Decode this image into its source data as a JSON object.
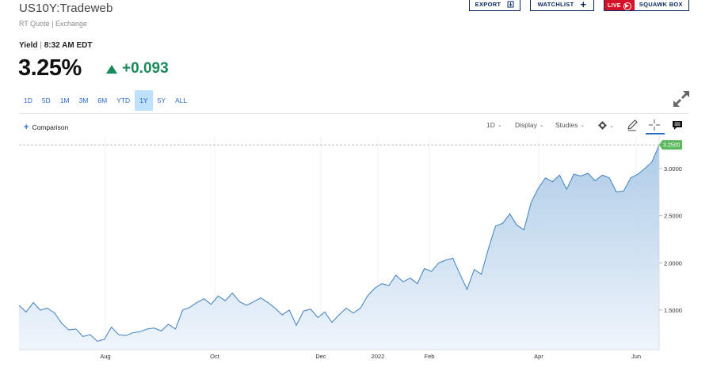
{
  "header": {
    "symbol": "US10Y:Tradeweb",
    "subtitle": "RT Quote | Exchange",
    "buttons": {
      "export": "EXPORT",
      "watchlist": "WATCHLIST",
      "live": "LIVE",
      "squawk": "SQUAWK BOX"
    }
  },
  "quote": {
    "label": "Yield",
    "separator": "|",
    "time": "8:32 AM EDT",
    "price": "3.25%",
    "change": "+0.093",
    "change_color": "#1a8a5a"
  },
  "ranges": [
    {
      "label": "1D",
      "active": false
    },
    {
      "label": "5D",
      "active": false
    },
    {
      "label": "1M",
      "active": false
    },
    {
      "label": "3M",
      "active": false
    },
    {
      "label": "6M",
      "active": false
    },
    {
      "label": "YTD",
      "active": false
    },
    {
      "label": "1Y",
      "active": true
    },
    {
      "label": "5Y",
      "active": false
    },
    {
      "label": "ALL",
      "active": false
    }
  ],
  "toolbar": {
    "comparison": "Comparison",
    "interval": "1D",
    "display": "Display",
    "studies": "Studies",
    "icons": [
      "gear-icon",
      "pencil-icon",
      "crosshair-icon",
      "comment-icon",
      "expand-icon"
    ]
  },
  "chart_data": {
    "type": "area",
    "x_tick_labels": [
      "Aug",
      "Oct",
      "Dec",
      "2022",
      "Feb",
      "Apr",
      "Jun"
    ],
    "y_tick_labels": [
      "3.0000",
      "2.5000",
      "2.0000",
      "1.5000"
    ],
    "y_ticks": [
      3.0,
      2.5,
      2.0,
      1.5
    ],
    "ylim": [
      1.1,
      3.45
    ],
    "last_value_label": "3.2500",
    "last_value": 3.25,
    "line_color": "#4a88c6",
    "badge_color": "#5cb85c",
    "grid": true,
    "series": [
      {
        "values": [
          1.55,
          1.48,
          1.58,
          1.5,
          1.52,
          1.47,
          1.36,
          1.29,
          1.3,
          1.22,
          1.24,
          1.17,
          1.19,
          1.32,
          1.24,
          1.23,
          1.26,
          1.27,
          1.3,
          1.31,
          1.28,
          1.35,
          1.3,
          1.5,
          1.53,
          1.58,
          1.62,
          1.56,
          1.65,
          1.6,
          1.68,
          1.59,
          1.55,
          1.59,
          1.63,
          1.58,
          1.52,
          1.45,
          1.5,
          1.34,
          1.49,
          1.51,
          1.42,
          1.48,
          1.37,
          1.45,
          1.52,
          1.47,
          1.52,
          1.65,
          1.73,
          1.78,
          1.76,
          1.87,
          1.8,
          1.84,
          1.78,
          1.94,
          1.91,
          2.0,
          2.03,
          2.05,
          1.88,
          1.72,
          1.93,
          1.88,
          2.15,
          2.39,
          2.42,
          2.52,
          2.4,
          2.35,
          2.64,
          2.79,
          2.9,
          2.86,
          2.93,
          2.78,
          2.94,
          2.92,
          2.95,
          2.87,
          2.93,
          2.9,
          2.75,
          2.76,
          2.9,
          2.94,
          3.0,
          3.07,
          3.25
        ]
      }
    ]
  }
}
